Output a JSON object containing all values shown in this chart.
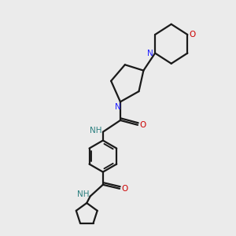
{
  "bg_color": "#ebebeb",
  "bond_color": "#1a1a1a",
  "N_color": "#2020ff",
  "O_color": "#cc0000",
  "NH_color": "#2d8080",
  "line_width": 1.6,
  "figsize": [
    3.0,
    3.0
  ],
  "dpi": 100,
  "xlim": [
    0,
    10
  ],
  "ylim": [
    0,
    10
  ]
}
